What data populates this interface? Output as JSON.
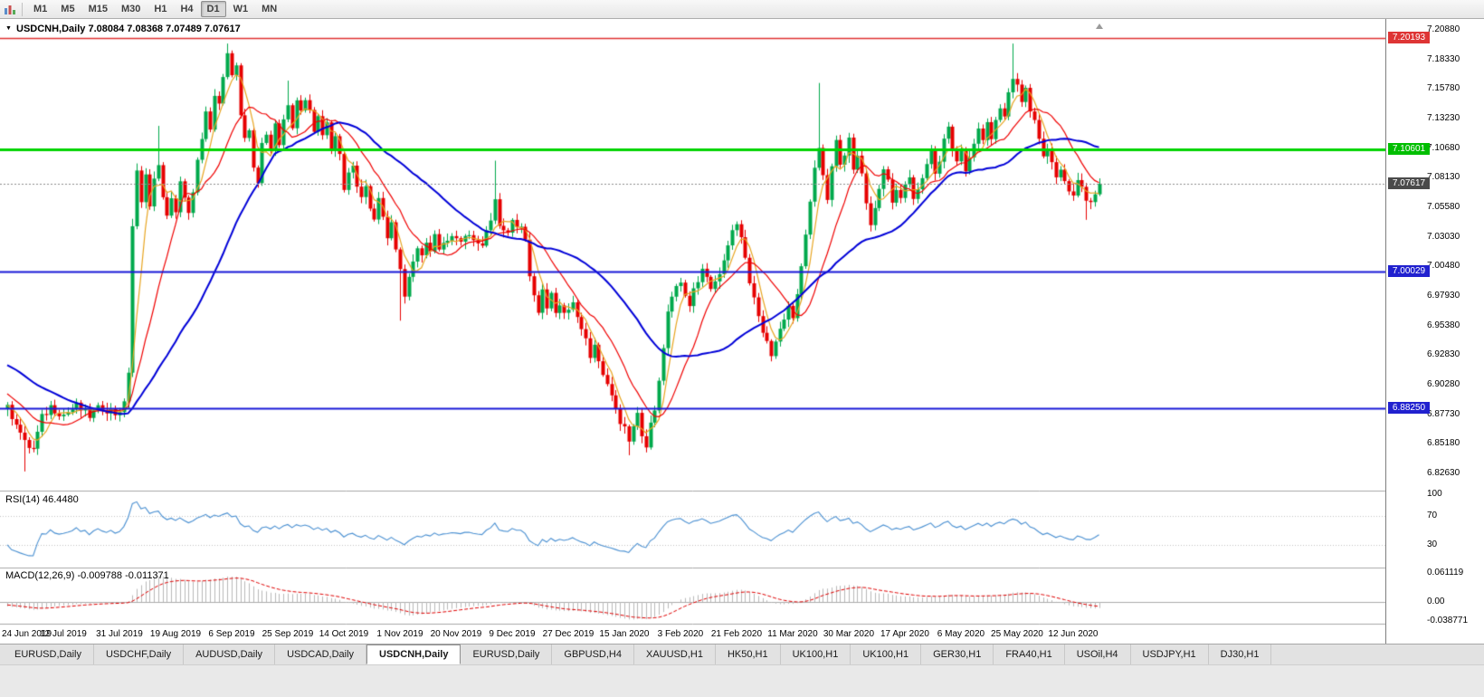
{
  "toolbar": {
    "timeframes": [
      {
        "label": "M1"
      },
      {
        "label": "M5"
      },
      {
        "label": "M15"
      },
      {
        "label": "M30"
      },
      {
        "label": "H1"
      },
      {
        "label": "H4"
      },
      {
        "label": "D1",
        "active": true
      },
      {
        "label": "W1"
      },
      {
        "label": "MN"
      }
    ]
  },
  "chart": {
    "header": {
      "expand_icon": "▼",
      "symbol": "USDCNH,Daily",
      "ohlc": "7.08084 7.08368 7.07489 7.07617"
    },
    "price_axis": {
      "ticks": [
        "7.20880",
        "7.18330",
        "7.15780",
        "7.13230",
        "7.10680",
        "7.08130",
        "7.05580",
        "7.03030",
        "7.00480",
        "6.97930",
        "6.95380",
        "6.92830",
        "6.90280",
        "6.87730",
        "6.85180",
        "6.82630"
      ]
    }
  },
  "chart_data": {
    "type": "candlestick",
    "symbol": "USDCNH",
    "timeframe": "Daily",
    "title": "USDCNH,Daily",
    "ohlc_current": {
      "open": 7.08084,
      "high": 7.08368,
      "low": 7.07489,
      "close": 7.07617
    },
    "price_range": {
      "top": 7.2088,
      "bottom": 6.8263
    },
    "x_labels": [
      "24 Jun 2019",
      "12 Jul 2019",
      "31 Jul 2019",
      "19 Aug 2019",
      "6 Sep 2019",
      "25 Sep 2019",
      "14 Oct 2019",
      "1 Nov 2019",
      "20 Nov 2019",
      "9 Dec 2019",
      "27 Dec 2019",
      "15 Jan 2020",
      "3 Feb 2020",
      "21 Feb 2020",
      "11 Mar 2020",
      "30 Mar 2020",
      "17 Apr 2020",
      "6 May 2020",
      "25 May 2020",
      "12 Jun 2020"
    ],
    "label_interval_days": 13,
    "style": {
      "up_color": "#00A94C",
      "down_color": "#E60000",
      "background": "#FFFFFF"
    },
    "prehistory_anchors": [
      [
        -60,
        6.798
      ],
      [
        -45,
        6.902
      ],
      [
        -30,
        6.948
      ],
      [
        -20,
        6.938
      ],
      [
        -10,
        6.902
      ],
      [
        -2,
        6.886
      ]
    ],
    "anchors": [
      [
        0,
        6.882
      ],
      [
        2,
        6.871
      ],
      [
        4,
        6.852
      ],
      [
        6,
        6.847
      ],
      [
        8,
        6.874
      ],
      [
        10,
        6.884
      ],
      [
        13,
        6.877
      ],
      [
        16,
        6.884
      ],
      [
        19,
        6.876
      ],
      [
        22,
        6.884
      ],
      [
        25,
        6.878
      ],
      [
        27,
        6.885
      ],
      [
        28,
        6.915
      ],
      [
        29,
        7.04
      ],
      [
        30,
        7.085
      ],
      [
        31,
        7.058
      ],
      [
        32,
        7.088
      ],
      [
        33,
        7.056
      ],
      [
        34,
        7.078
      ],
      [
        35,
        7.095
      ],
      [
        36,
        7.062
      ],
      [
        37,
        7.046
      ],
      [
        38,
        7.066
      ],
      [
        39,
        7.052
      ],
      [
        40,
        7.076
      ],
      [
        41,
        7.062
      ],
      [
        42,
        7.048
      ],
      [
        43,
        7.072
      ],
      [
        44,
        7.095
      ],
      [
        45,
        7.112
      ],
      [
        46,
        7.135
      ],
      [
        47,
        7.122
      ],
      [
        48,
        7.152
      ],
      [
        49,
        7.142
      ],
      [
        50,
        7.172
      ],
      [
        51,
        7.192
      ],
      [
        52,
        7.168
      ],
      [
        53,
        7.178
      ],
      [
        54,
        7.132
      ],
      [
        55,
        7.112
      ],
      [
        56,
        7.122
      ],
      [
        57,
        7.092
      ],
      [
        58,
        7.078
      ],
      [
        59,
        7.108
      ],
      [
        60,
        7.118
      ],
      [
        61,
        7.108
      ],
      [
        62,
        7.128
      ],
      [
        63,
        7.112
      ],
      [
        64,
        7.132
      ],
      [
        65,
        7.142
      ],
      [
        66,
        7.122
      ],
      [
        67,
        7.148
      ],
      [
        68,
        7.138
      ],
      [
        69,
        7.152
      ],
      [
        70,
        7.138
      ],
      [
        71,
        7.118
      ],
      [
        72,
        7.132
      ],
      [
        73,
        7.118
      ],
      [
        74,
        7.128
      ],
      [
        75,
        7.108
      ],
      [
        76,
        7.118
      ],
      [
        77,
        7.098
      ],
      [
        78,
        7.072
      ],
      [
        79,
        7.082
      ],
      [
        80,
        7.092
      ],
      [
        81,
        7.072
      ],
      [
        82,
        7.062
      ],
      [
        83,
        7.078
      ],
      [
        84,
        7.058
      ],
      [
        85,
        7.042
      ],
      [
        86,
        7.062
      ],
      [
        87,
        7.048
      ],
      [
        88,
        7.032
      ],
      [
        89,
        7.042
      ],
      [
        90,
        7.022
      ],
      [
        91,
        7.002
      ],
      [
        92,
        6.982
      ],
      [
        93,
        6.992
      ],
      [
        94,
        7.008
      ],
      [
        95,
        7.022
      ],
      [
        96,
        7.012
      ],
      [
        97,
        7.028
      ],
      [
        98,
        7.018
      ],
      [
        99,
        7.032
      ],
      [
        100,
        7.022
      ],
      [
        102,
        7.028
      ],
      [
        104,
        7.028
      ],
      [
        106,
        7.028
      ],
      [
        108,
        7.028
      ],
      [
        110,
        7.025
      ],
      [
        112,
        7.042
      ],
      [
        113,
        7.062
      ],
      [
        114,
        7.042
      ],
      [
        115,
        7.032
      ],
      [
        117,
        7.042
      ],
      [
        119,
        7.038
      ],
      [
        120,
        7.028
      ],
      [
        121,
        6.998
      ],
      [
        122,
        6.978
      ],
      [
        123,
        6.965
      ],
      [
        124,
        6.985
      ],
      [
        125,
        6.972
      ],
      [
        126,
        6.982
      ],
      [
        127,
        6.962
      ],
      [
        128,
        6.972
      ],
      [
        129,
        6.962
      ],
      [
        131,
        6.972
      ],
      [
        133,
        6.952
      ],
      [
        134,
        6.942
      ],
      [
        135,
        6.928
      ],
      [
        136,
        6.938
      ],
      [
        137,
        6.922
      ],
      [
        138,
        6.912
      ],
      [
        139,
        6.902
      ],
      [
        140,
        6.892
      ],
      [
        141,
        6.882
      ],
      [
        142,
        6.872
      ],
      [
        143,
        6.868
      ],
      [
        144,
        6.855
      ],
      [
        145,
        6.865
      ],
      [
        146,
        6.875
      ],
      [
        147,
        6.858
      ],
      [
        148,
        6.848
      ],
      [
        149,
        6.868
      ],
      [
        150,
        6.882
      ],
      [
        151,
        6.905
      ],
      [
        152,
        6.938
      ],
      [
        153,
        6.962
      ],
      [
        154,
        6.975
      ],
      [
        155,
        6.985
      ],
      [
        156,
        6.992
      ],
      [
        157,
        6.982
      ],
      [
        158,
        6.972
      ],
      [
        159,
        6.985
      ],
      [
        160,
        6.995
      ],
      [
        161,
        7.002
      ],
      [
        162,
        6.992
      ],
      [
        163,
        6.982
      ],
      [
        164,
        6.992
      ],
      [
        165,
        7.002
      ],
      [
        166,
        7.012
      ],
      [
        167,
        7.022
      ],
      [
        168,
        7.035
      ],
      [
        169,
        7.042
      ],
      [
        170,
        7.032
      ],
      [
        171,
        7.012
      ],
      [
        172,
        6.992
      ],
      [
        173,
        6.978
      ],
      [
        174,
        6.962
      ],
      [
        175,
        6.948
      ],
      [
        176,
        6.938
      ],
      [
        177,
        6.928
      ],
      [
        178,
        6.942
      ],
      [
        179,
        6.952
      ],
      [
        180,
        6.962
      ],
      [
        181,
        6.972
      ],
      [
        182,
        6.962
      ],
      [
        183,
        6.982
      ],
      [
        184,
        7.002
      ],
      [
        185,
        7.032
      ],
      [
        186,
        7.062
      ],
      [
        187,
        7.092
      ],
      [
        188,
        7.108
      ],
      [
        189,
        7.082
      ],
      [
        190,
        7.062
      ],
      [
        191,
        7.088
      ],
      [
        192,
        7.112
      ],
      [
        193,
        7.092
      ],
      [
        194,
        7.102
      ],
      [
        195,
        7.112
      ],
      [
        196,
        7.092
      ],
      [
        197,
        7.102
      ],
      [
        198,
        7.082
      ],
      [
        199,
        7.062
      ],
      [
        200,
        7.042
      ],
      [
        201,
        7.052
      ],
      [
        202,
        7.072
      ],
      [
        203,
        7.088
      ],
      [
        204,
        7.078
      ],
      [
        205,
        7.062
      ],
      [
        206,
        7.072
      ],
      [
        207,
        7.062
      ],
      [
        208,
        7.072
      ],
      [
        209,
        7.082
      ],
      [
        210,
        7.062
      ],
      [
        211,
        7.072
      ],
      [
        212,
        7.082
      ],
      [
        213,
        7.092
      ],
      [
        214,
        7.102
      ],
      [
        215,
        7.088
      ],
      [
        216,
        7.098
      ],
      [
        217,
        7.112
      ],
      [
        218,
        7.122
      ],
      [
        219,
        7.102
      ],
      [
        220,
        7.092
      ],
      [
        221,
        7.102
      ],
      [
        222,
        7.088
      ],
      [
        223,
        7.098
      ],
      [
        224,
        7.112
      ],
      [
        225,
        7.122
      ],
      [
        226,
        7.112
      ],
      [
        227,
        7.128
      ],
      [
        228,
        7.112
      ],
      [
        229,
        7.128
      ],
      [
        230,
        7.142
      ],
      [
        231,
        7.132
      ],
      [
        232,
        7.152
      ],
      [
        233,
        7.168
      ],
      [
        234,
        7.158
      ],
      [
        235,
        7.148
      ],
      [
        236,
        7.155
      ],
      [
        237,
        7.138
      ],
      [
        238,
        7.128
      ],
      [
        239,
        7.112
      ],
      [
        240,
        7.098
      ],
      [
        241,
        7.108
      ],
      [
        242,
        7.092
      ],
      [
        243,
        7.082
      ],
      [
        244,
        7.088
      ],
      [
        245,
        7.078
      ],
      [
        246,
        7.072
      ],
      [
        247,
        7.068
      ],
      [
        248,
        7.078
      ],
      [
        249,
        7.072
      ],
      [
        250,
        7.062
      ],
      [
        251,
        7.058
      ],
      [
        252,
        7.068
      ],
      [
        253,
        7.07617
      ]
    ],
    "wick_overrides": [
      [
        4,
        "low",
        6.828
      ],
      [
        35,
        "high",
        7.126
      ],
      [
        51,
        "high",
        7.197
      ],
      [
        65,
        "high",
        7.165
      ],
      [
        91,
        "low",
        6.958
      ],
      [
        113,
        "high",
        7.096
      ],
      [
        144,
        "low",
        6.842
      ],
      [
        188,
        "high",
        7.163
      ],
      [
        233,
        "high",
        7.197
      ],
      [
        250,
        "low",
        7.045
      ]
    ],
    "moving_averages": [
      {
        "period": 5,
        "color": "#E8A520",
        "width": 1.2
      },
      {
        "period": 13,
        "color": "#F00000",
        "width": 1.2
      },
      {
        "period": 34,
        "color": "#0000D8",
        "width": 2
      }
    ],
    "horizontal_lines": [
      {
        "price": 7.20193,
        "label": "7.20193",
        "color": "#E03030",
        "badge_color": "#DE3535",
        "width": 1.5
      },
      {
        "price": 7.10601,
        "label": "7.10601",
        "color": "#00D400",
        "badge_color": "#00BE00",
        "width": 3
      },
      {
        "price": 7.00029,
        "label": "7.00029",
        "color": "#1818D8",
        "badge_color": "#2121CF",
        "width": 2
      },
      {
        "price": 6.8825,
        "label": "6.88250",
        "color": "#1818D8",
        "badge_color": "#2121CF",
        "width": 2
      }
    ],
    "current_price": {
      "price": 7.07617,
      "label": "7.07617",
      "badge_color": "#4A4A4A",
      "line_color": "#8C8C8C"
    },
    "indicators": {
      "rsi": {
        "label": "RSI(14) 46.4480",
        "period": 14,
        "value": 46.448,
        "color": "#4A90D2",
        "levels": [
          100,
          70,
          30
        ]
      },
      "macd": {
        "label": "MACD(12,26,9) -0.009788 -0.011371",
        "fast": 12,
        "slow": 26,
        "signal_period": 9,
        "main_value": -0.009788,
        "signal_value": -0.011371,
        "axis_labels": [
          {
            "text": "0.061119",
            "value": 0.061119
          },
          {
            "text": "0.00",
            "value": 0
          },
          {
            "text": "-0.038771",
            "value": -0.038771
          }
        ],
        "histogram_color": "#B9B9B9",
        "signal_color": "#E00000"
      }
    }
  },
  "tabs": [
    {
      "label": "EURUSD,Daily"
    },
    {
      "label": "USDCHF,Daily"
    },
    {
      "label": "AUDUSD,Daily"
    },
    {
      "label": "USDCAD,Daily"
    },
    {
      "label": "USDCNH,Daily",
      "active": true
    },
    {
      "label": "EURUSD,Daily"
    },
    {
      "label": "GBPUSD,H4"
    },
    {
      "label": "XAUUSD,H1"
    },
    {
      "label": "HK50,H1"
    },
    {
      "label": "UK100,H1"
    },
    {
      "label": "UK100,H1"
    },
    {
      "label": "GER30,H1"
    },
    {
      "label": "FRA40,H1"
    },
    {
      "label": "USOil,H4"
    },
    {
      "label": "USDJPY,H1"
    },
    {
      "label": "DJ30,H1"
    }
  ]
}
